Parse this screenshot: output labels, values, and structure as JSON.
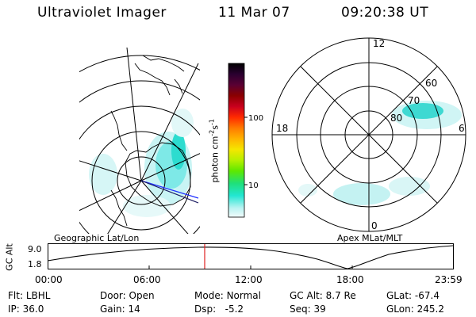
{
  "header": {
    "title": "Ultraviolet Imager",
    "date": "11 Mar 07",
    "time": "09:20:38 UT"
  },
  "colorbar": {
    "unit_text": "photon cm",
    "unit_exp1": "-2",
    "unit_s": "s",
    "unit_exp2": "-1",
    "ticks": [
      "100",
      "10"
    ],
    "colors": [
      "#000000",
      "#2a0030",
      "#5a0033",
      "#8b0000",
      "#c8001e",
      "#ff2a00",
      "#ff7a00",
      "#ffb300",
      "#f5e600",
      "#b6f000",
      "#5ee800",
      "#1fe07a",
      "#22e6d2",
      "#b9f3f2",
      "#f2fbfb"
    ]
  },
  "polar_plot": {
    "mlt_labels": [
      "12",
      "18",
      "6",
      "0"
    ],
    "lat_labels": [
      "60",
      "70",
      "80"
    ]
  },
  "geo_panel_label": "Geographic Lat/Lon",
  "apex_panel_label": "Apex MLat/MLT",
  "altitude_plot": {
    "axis_label": "GC Alt",
    "y_ticks": [
      "9.0",
      "1.8"
    ],
    "x_ticks": [
      "00:00",
      "06:00",
      "12:00",
      "18:00",
      "23:59"
    ],
    "marker_time": "09:20",
    "marker_color": "#e02020"
  },
  "status": {
    "filter_label": "Flt:",
    "filter_value": "LBHL",
    "door_label": "Door:",
    "door_value": "Open",
    "mode_label": "Mode:",
    "mode_value": "Normal",
    "gc_alt_label": "GC Alt:",
    "gc_alt_value": "8.7 Re",
    "glat_label": "GLat:",
    "glat_value": "-67.4",
    "ip_label": "IP:",
    "ip_value": "36.0",
    "gain_label": "Gain:",
    "gain_value": "14",
    "dsp_label": "Dsp:",
    "dsp_value": "-5.2",
    "seq_label": "Seq:",
    "seq_value": "39",
    "glon_label": "GLon:",
    "glon_value": "245.2"
  }
}
